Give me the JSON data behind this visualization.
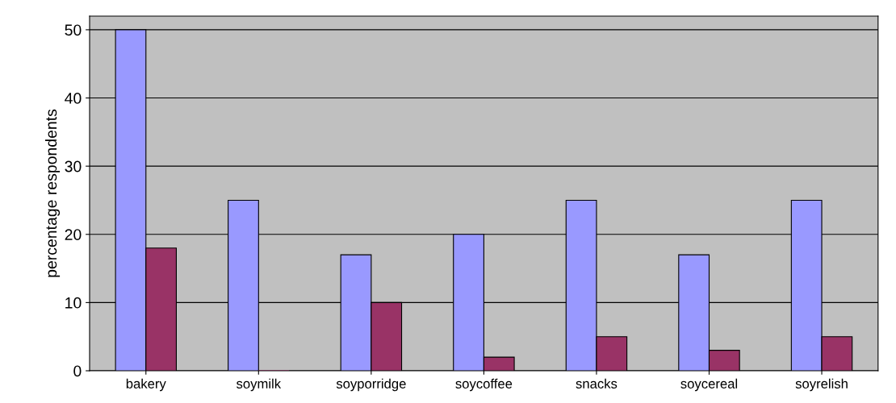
{
  "chart_data": {
    "type": "bar",
    "ylabel": "percentage respondents",
    "categories": [
      "bakery",
      "soymilk",
      "soyporridge",
      "soycoffee",
      "snacks",
      "soycereal",
      "soyrelish"
    ],
    "series": [
      {
        "color": "#9999ff",
        "values": [
          50,
          25,
          17,
          20,
          25,
          17,
          25
        ]
      },
      {
        "color": "#993366",
        "values": [
          18,
          0,
          10,
          2,
          5,
          3,
          5
        ]
      }
    ],
    "ylim": [
      0,
      52
    ],
    "yticks": [
      0,
      10,
      20,
      30,
      40,
      50
    ],
    "grid": "y",
    "legend": false
  }
}
